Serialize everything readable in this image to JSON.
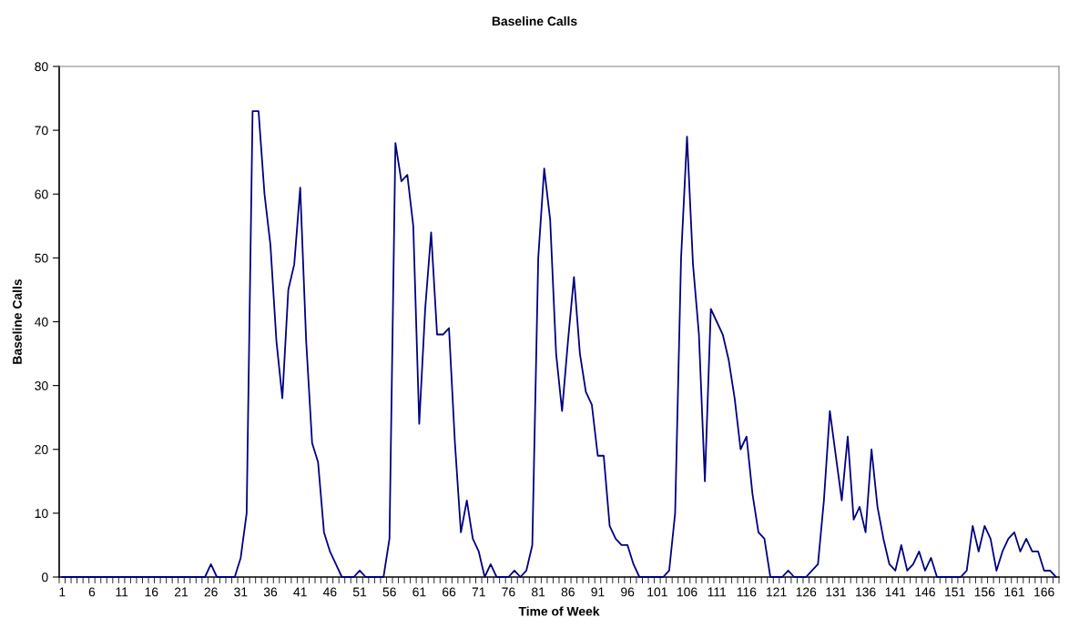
{
  "chart_data": {
    "type": "line",
    "title": "Baseline Calls",
    "xlabel": "Time of Week",
    "ylabel": "Baseline Calls",
    "categories": [
      "1",
      null,
      null,
      null,
      null,
      "6",
      null,
      null,
      null,
      null,
      "11",
      null,
      null,
      null,
      null,
      "16",
      null,
      null,
      null,
      null,
      "21",
      null,
      null,
      null,
      null,
      "26",
      null,
      null,
      null,
      null,
      "31",
      null,
      null,
      null,
      null,
      "36",
      null,
      null,
      null,
      null,
      "41",
      null,
      null,
      null,
      null,
      "46",
      null,
      null,
      null,
      null,
      "51",
      null,
      null,
      null,
      null,
      "56",
      null,
      null,
      null,
      null,
      "61",
      null,
      null,
      null,
      null,
      "66",
      null,
      null,
      null,
      null,
      "71",
      null,
      null,
      null,
      null,
      "76",
      null,
      null,
      null,
      null,
      "81",
      null,
      null,
      null,
      null,
      "86",
      null,
      null,
      null,
      null,
      "91",
      null,
      null,
      null,
      null,
      "96",
      null,
      null,
      null,
      null,
      "101",
      null,
      null,
      null,
      null,
      "106",
      null,
      null,
      null,
      null,
      "111",
      null,
      null,
      null,
      null,
      "116",
      null,
      null,
      null,
      null,
      "121",
      null,
      null,
      null,
      null,
      "126",
      null,
      null,
      null,
      null,
      "131",
      null,
      null,
      null,
      null,
      "136",
      null,
      null,
      null,
      null,
      "141",
      null,
      null,
      null,
      null,
      "146",
      null,
      null,
      null,
      null,
      "151",
      null,
      null,
      null,
      null,
      "156",
      null,
      null,
      null,
      null,
      "161",
      null,
      null,
      null,
      null,
      "166",
      null,
      null
    ],
    "series": [
      {
        "color": "#000080",
        "values": [
          0,
          0,
          0,
          0,
          0,
          0,
          0,
          0,
          0,
          0,
          0,
          0,
          0,
          0,
          0,
          0,
          0,
          0,
          0,
          0,
          0,
          0,
          0,
          0,
          0,
          2,
          0,
          0,
          0,
          0,
          3,
          10,
          73,
          73,
          60,
          52,
          37,
          28,
          45,
          49,
          61,
          37,
          21,
          18,
          7,
          4,
          2,
          0,
          0,
          0,
          1,
          0,
          0,
          0,
          0,
          6,
          68,
          62,
          63,
          55,
          24,
          42,
          54,
          38,
          38,
          39,
          21,
          7,
          12,
          6,
          4,
          0,
          2,
          0,
          0,
          0,
          1,
          0,
          1,
          5,
          50,
          64,
          56,
          35,
          26,
          37,
          47,
          35,
          29,
          27,
          19,
          19,
          8,
          6,
          5,
          5,
          2,
          0,
          0,
          0,
          0,
          0,
          1,
          10,
          50,
          69,
          49,
          38,
          15,
          42,
          40,
          38,
          34,
          28,
          20,
          22,
          13,
          7,
          6,
          0,
          0,
          0,
          1,
          0,
          0,
          0,
          1,
          2,
          12,
          26,
          19,
          12,
          22,
          9,
          11,
          7,
          20,
          11,
          6,
          2,
          1,
          5,
          1,
          2,
          4,
          1,
          3,
          0,
          0,
          0,
          0,
          0,
          1,
          8,
          4,
          8,
          6,
          1,
          4,
          6,
          7,
          4,
          6,
          4,
          4,
          1,
          1,
          0
        ]
      }
    ],
    "ylim": [
      0,
      80
    ],
    "yticks": [
      0,
      10,
      20,
      30,
      40,
      50,
      60,
      70,
      80
    ],
    "grid": false,
    "marker": "none",
    "line_style": "solid"
  }
}
